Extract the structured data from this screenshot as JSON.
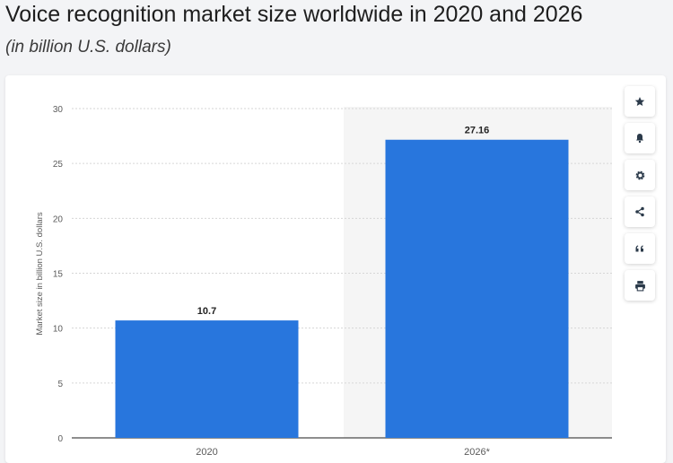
{
  "header": {
    "title": "Voice recognition market size worldwide in 2020 and 2026",
    "subtitle": "(in billion U.S. dollars)"
  },
  "toolbar": {
    "buttons": [
      {
        "name": "favorite-button",
        "icon": "star-icon"
      },
      {
        "name": "notification-button",
        "icon": "bell-icon"
      },
      {
        "name": "settings-button",
        "icon": "gear-icon"
      },
      {
        "name": "share-button",
        "icon": "share-icon"
      },
      {
        "name": "cite-button",
        "icon": "quote-icon"
      },
      {
        "name": "print-button",
        "icon": "printer-icon"
      }
    ]
  },
  "colors": {
    "bar": "#2876dd",
    "highlight_band": "#f5f5f5",
    "grid": "#d6d6d6",
    "axis_text": "#5b5b5b",
    "value_text": "#222222"
  },
  "chart_data": {
    "type": "bar",
    "categories": [
      "2020",
      "2026*"
    ],
    "values": [
      10.7,
      27.16
    ],
    "value_labels": [
      "10.7",
      "27.16"
    ],
    "title": "Voice recognition market size worldwide in 2020 and 2026",
    "subtitle": "(in billion U.S. dollars)",
    "xlabel": "",
    "ylabel": "Market size in billion U.S. dollars",
    "ylim": [
      0,
      30
    ],
    "yticks": [
      0,
      5,
      10,
      15,
      20,
      25,
      30
    ],
    "grid": true,
    "highlighted_category": "2026*"
  }
}
